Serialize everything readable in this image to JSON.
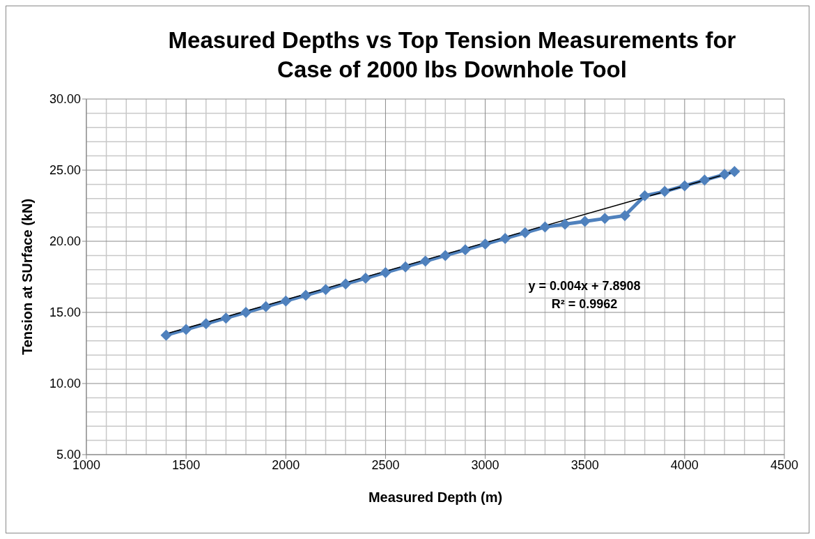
{
  "chart_data": {
    "type": "line",
    "title": "Measured Depths vs Top Tension Measurements for Case of 2000 lbs Downhole Tool",
    "xlabel": "Measured  Depth (m)",
    "ylabel": "Tension at SUrface (kN)",
    "x": [
      1400,
      1500,
      1600,
      1700,
      1800,
      1900,
      2000,
      2100,
      2200,
      2300,
      2400,
      2500,
      2600,
      2700,
      2800,
      2900,
      3000,
      3100,
      3200,
      3300,
      3400,
      3500,
      3600,
      3700,
      3800,
      3900,
      4000,
      4100,
      4200,
      4250
    ],
    "series": [
      {
        "color": "#4f81bd",
        "marker": "diamond",
        "values": [
          13.4,
          13.8,
          14.2,
          14.6,
          15.0,
          15.4,
          15.8,
          16.2,
          16.6,
          17.0,
          17.4,
          17.8,
          18.2,
          18.6,
          19.0,
          19.4,
          19.8,
          20.2,
          20.6,
          21.0,
          21.2,
          21.4,
          21.6,
          21.8,
          23.2,
          23.5,
          23.9,
          24.3,
          24.7,
          24.9
        ]
      },
      {
        "type": "line",
        "color": "#000000",
        "marker": "none",
        "x": [
          1400,
          4250
        ],
        "values": [
          13.49,
          24.89
        ]
      }
    ],
    "annotations": [
      "y = 0.004x + 7.8908",
      "R² = 0.9962"
    ],
    "xlim": [
      1000,
      4500
    ],
    "xticks": [
      1000,
      1500,
      2000,
      2500,
      3000,
      3500,
      4000,
      4500
    ],
    "ylim": [
      5,
      30
    ],
    "yticks": [
      {
        "value": 5,
        "label": "5.00"
      },
      {
        "value": 10,
        "label": "10.00"
      },
      {
        "value": 15,
        "label": "15.00"
      },
      {
        "value": 20,
        "label": "20.00"
      },
      {
        "value": 25,
        "label": "25.00"
      },
      {
        "value": 30,
        "label": "30.00"
      }
    ],
    "grid": true,
    "legend": false
  }
}
